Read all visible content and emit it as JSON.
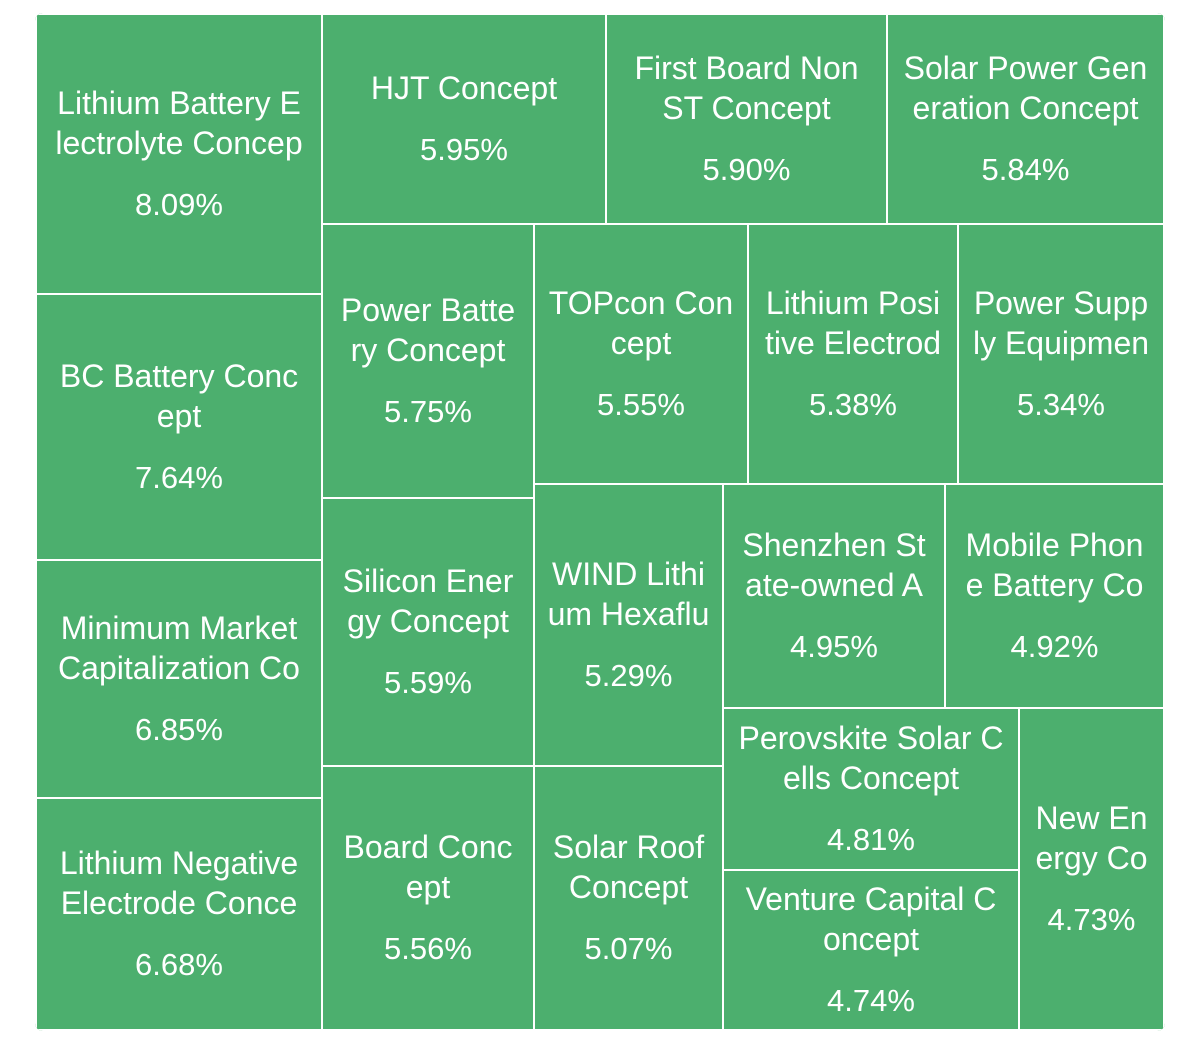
{
  "chart_data": {
    "type": "treemap",
    "color": "#4caf6e",
    "border_color": "#ffffff",
    "items": [
      {
        "name": "Lithium Battery E\nlectrolyte Concep",
        "value": "8.09%"
      },
      {
        "name": "BC Battery Conc\nept",
        "value": "7.64%"
      },
      {
        "name": "Minimum Market\nCapitalization Co",
        "value": "6.85%"
      },
      {
        "name": "Lithium Negative\nElectrode Conce",
        "value": "6.68%"
      },
      {
        "name": "HJT Concept",
        "value": "5.95%"
      },
      {
        "name": "First Board Non\nST Concept",
        "value": "5.90%"
      },
      {
        "name": "Solar Power Gen\neration Concept",
        "value": "5.84%"
      },
      {
        "name": "Power Batte\nry Concept",
        "value": "5.75%"
      },
      {
        "name": "Silicon Ener\ngy Concept",
        "value": "5.59%"
      },
      {
        "name": "Board Conc\nept",
        "value": "5.56%"
      },
      {
        "name": "TOPcon Con\ncept",
        "value": "5.55%"
      },
      {
        "name": "Lithium Posi\ntive Electrod",
        "value": "5.38%"
      },
      {
        "name": "Power Supp\nly Equipmen",
        "value": "5.34%"
      },
      {
        "name": "WIND Lithi\num Hexaflu",
        "value": "5.29%"
      },
      {
        "name": "Solar Roof\nConcept",
        "value": "5.07%"
      },
      {
        "name": "Shenzhen St\nate-owned A",
        "value": "4.95%"
      },
      {
        "name": "Mobile Phon\ne Battery Co",
        "value": "4.92%"
      },
      {
        "name": "Perovskite Solar C\nells Concept",
        "value": "4.81%"
      },
      {
        "name": "Venture Capital C\noncept",
        "value": "4.74%"
      },
      {
        "name": "New En\nergy Co",
        "value": "4.73%"
      }
    ]
  }
}
